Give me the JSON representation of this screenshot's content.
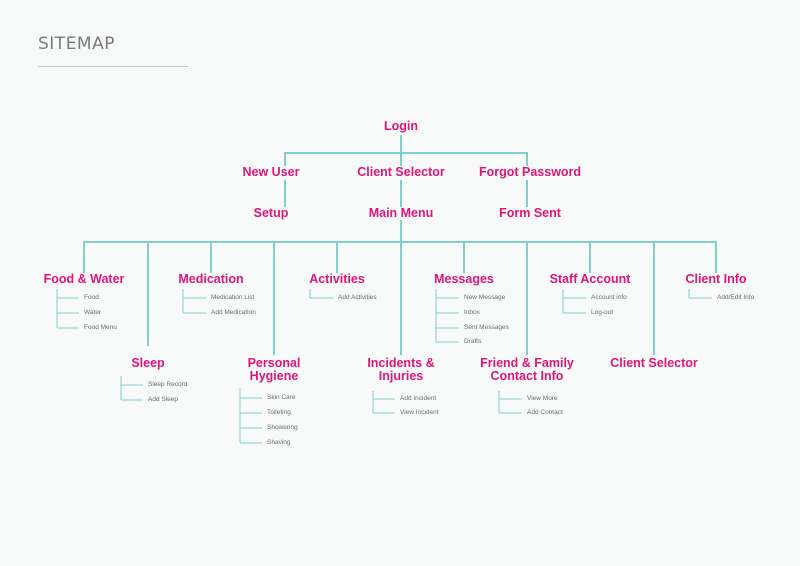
{
  "header": {
    "title": "SITEMAP"
  },
  "colors": {
    "accent": "#e0157a",
    "line": "#7fcfca",
    "sub_text": "#6b6b6b"
  },
  "nodes": {
    "login": "Login",
    "new_user": "New User",
    "client_selector_top": "Client Selector",
    "forgot_password": "Forgot Password",
    "setup": "Setup",
    "main_menu": "Main Menu",
    "form_sent": "Form Sent",
    "food_water": "Food & Water",
    "medication": "Medication",
    "activities": "Activities",
    "messages": "Messages",
    "staff_account": "Staff Account",
    "client_info": "Client Info",
    "sleep": "Sleep",
    "personal_hygiene_1": "Personal",
    "personal_hygiene_2": "Hygiene",
    "incidents_1": "Incidents &",
    "incidents_2": "Injuries",
    "friend_family_1": "Friend & Family",
    "friend_family_2": "Contact Info",
    "client_selector_bottom": "Client Selector"
  },
  "subs": {
    "food_water": [
      "Food",
      "Water",
      "Food Menu"
    ],
    "medication": [
      "Medication List",
      "Add Medication"
    ],
    "activities": [
      "Add Activities"
    ],
    "messages": [
      "New Message",
      "Inbox",
      "Sent Messages",
      "Drafts"
    ],
    "staff_account": [
      "Account info",
      "Log-out"
    ],
    "client_info": [
      "Add/Edit Info"
    ],
    "sleep": [
      "Sleep Record",
      "Add Sleep"
    ],
    "personal_hygiene": [
      "Skin Care",
      "Toileting",
      "Showering",
      "Shaving"
    ],
    "incidents": [
      "Add Incident",
      "View Incident"
    ],
    "friend_family": [
      "View More",
      "Add Contact"
    ]
  }
}
